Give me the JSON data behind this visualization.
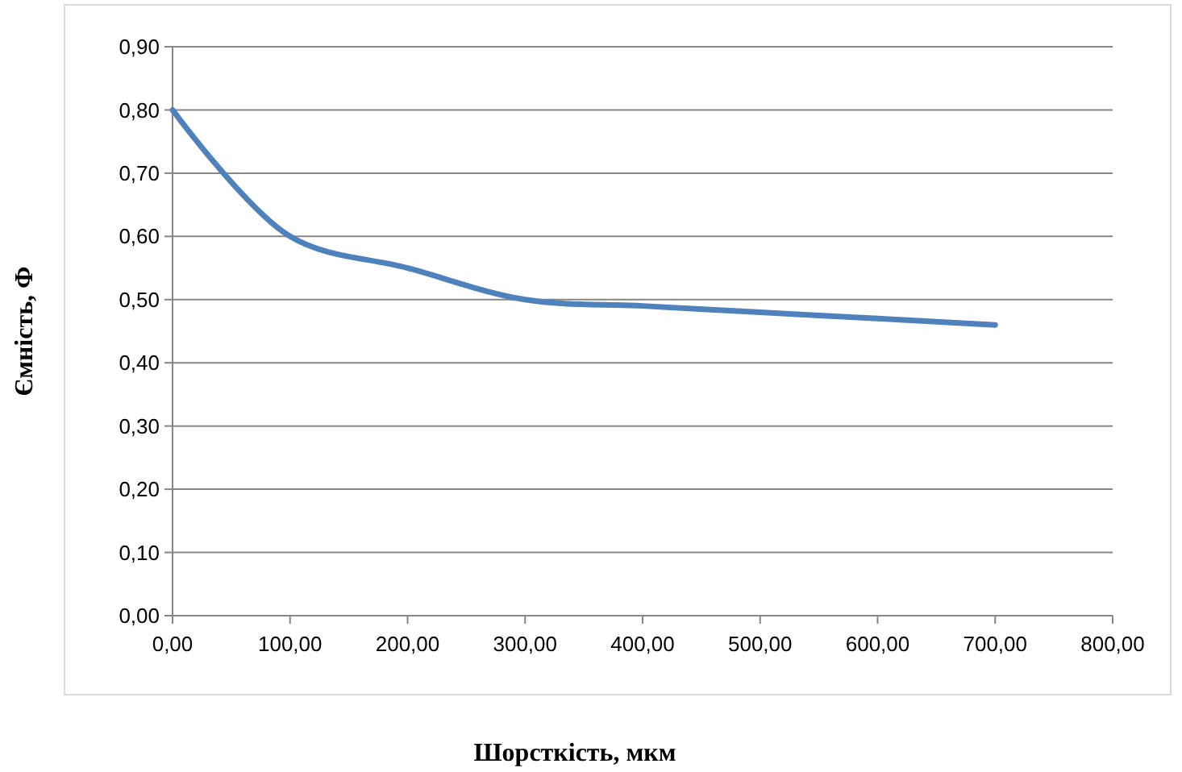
{
  "chart_data": {
    "type": "line",
    "xlabel": "Шорсткість, мкм",
    "ylabel": "Ємність, Ф",
    "x": [
      0,
      100,
      200,
      300,
      400,
      500,
      600,
      700
    ],
    "series": [
      {
        "color": "#4f81bd",
        "values": [
          0.8,
          0.6,
          0.55,
          0.5,
          0.49,
          0.48,
          0.47,
          0.46
        ]
      }
    ],
    "xlim": [
      0,
      800
    ],
    "ylim": [
      0,
      0.9
    ],
    "xticks": [
      {
        "value": 0,
        "label": "0,00"
      },
      {
        "value": 100,
        "label": "100,00"
      },
      {
        "value": 200,
        "label": "200,00"
      },
      {
        "value": 300,
        "label": "300,00"
      },
      {
        "value": 400,
        "label": "400,00"
      },
      {
        "value": 500,
        "label": "500,00"
      },
      {
        "value": 600,
        "label": "600,00"
      },
      {
        "value": 700,
        "label": "700,00"
      },
      {
        "value": 800,
        "label": "800,00"
      }
    ],
    "yticks": [
      {
        "value": 0,
        "label": "0,00"
      },
      {
        "value": 0.1,
        "label": "0,10"
      },
      {
        "value": 0.2,
        "label": "0,20"
      },
      {
        "value": 0.3,
        "label": "0,30"
      },
      {
        "value": 0.4,
        "label": "0,40"
      },
      {
        "value": 0.5,
        "label": "0,50"
      },
      {
        "value": 0.6,
        "label": "0,60"
      },
      {
        "value": 0.7,
        "label": "0,70"
      },
      {
        "value": 0.8,
        "label": "0,80"
      },
      {
        "value": 0.9,
        "label": "0,90"
      }
    ],
    "grid": "y",
    "marker": "none",
    "line_style": "solid"
  }
}
